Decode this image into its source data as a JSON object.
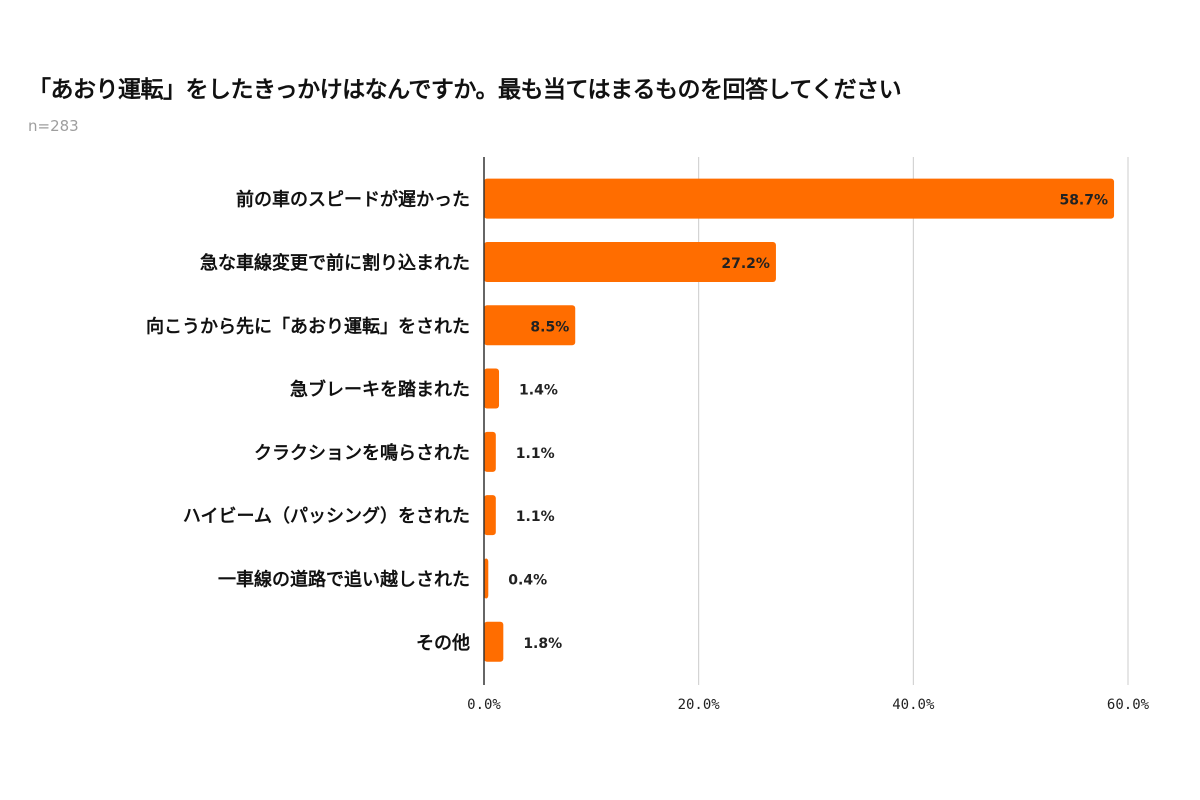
{
  "chart_data": {
    "type": "bar",
    "orientation": "horizontal",
    "title": "「あおり運転」をしたきっかけはなんですか。最も当てはまるものを回答してください",
    "subtitle": "n=283",
    "categories": [
      "前の車のスピードが遅かった",
      "急な車線変更で前に割り込まれた",
      "向こうから先に「あおり運転」をされた",
      "急ブレーキを踏まれた",
      "クラクションを鳴らされた",
      "ハイビーム（パッシング）をされた",
      "一車線の道路で追い越しされた",
      "その他"
    ],
    "values": [
      58.7,
      27.2,
      8.5,
      1.4,
      1.1,
      1.1,
      0.4,
      1.8
    ],
    "data_labels": [
      "58.7%",
      "27.2%",
      "8.5%",
      "1.4%",
      "1.1%",
      "1.1%",
      "0.4%",
      "1.8%"
    ],
    "xlim": [
      0,
      60
    ],
    "x_ticks": [
      "0.0%",
      "20.0%",
      "40.0%",
      "60.0%"
    ],
    "x_tick_values": [
      0,
      20,
      40,
      60
    ],
    "grid": true,
    "bar_color": "#FF6D00"
  }
}
